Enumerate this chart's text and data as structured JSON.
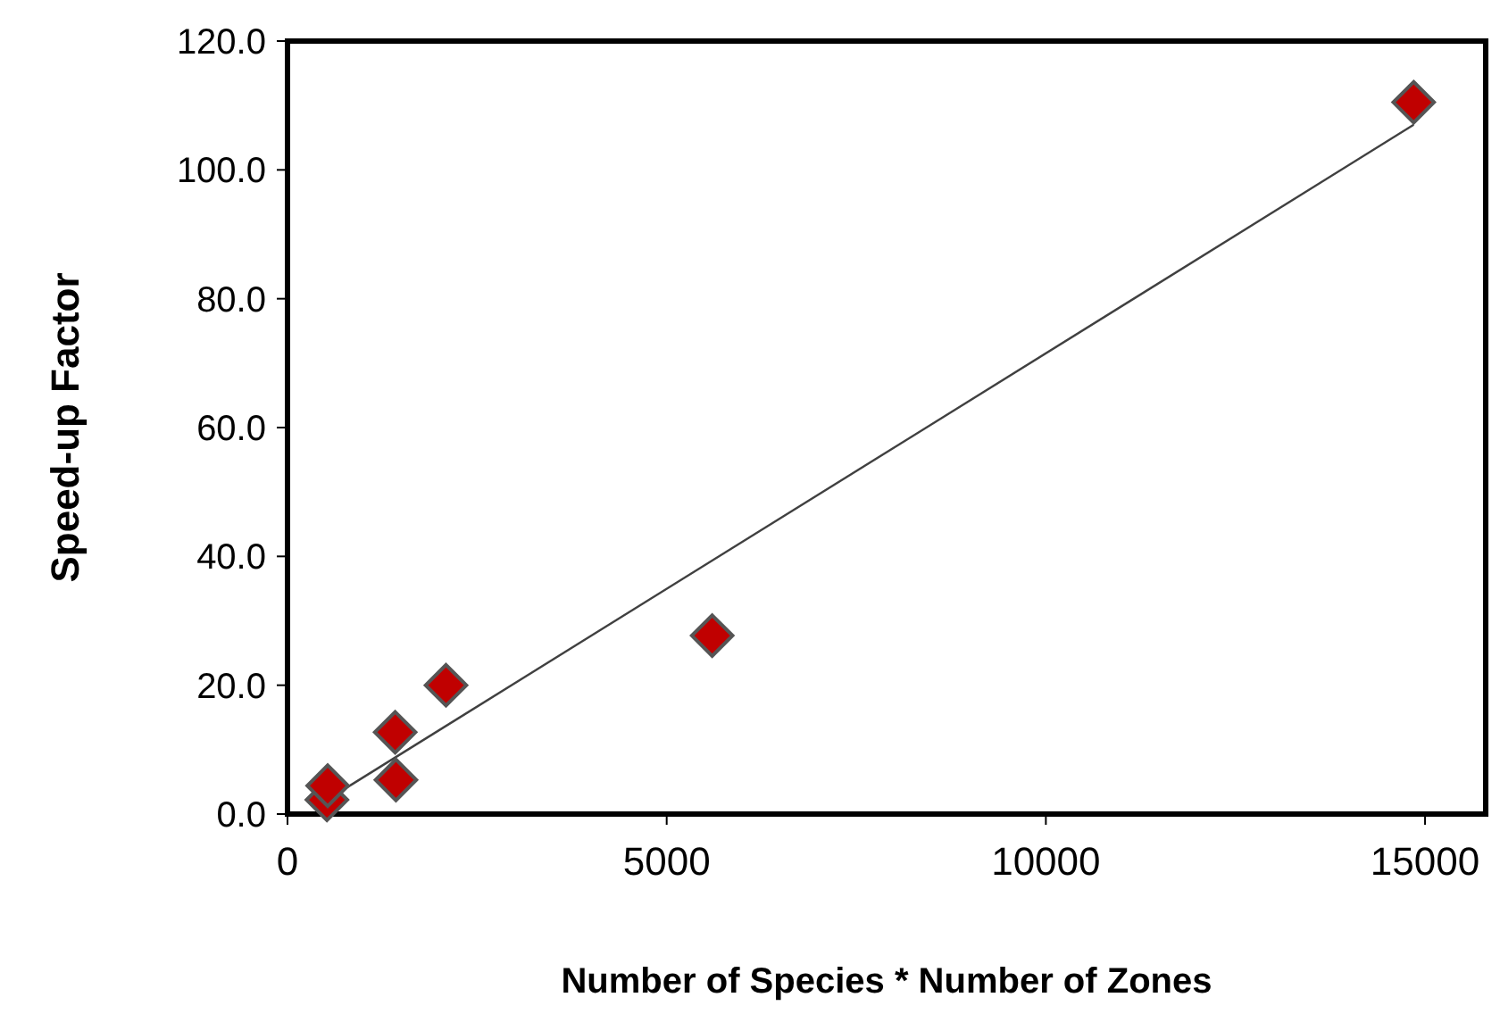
{
  "chart_data": {
    "type": "scatter",
    "xlabel": "Number of Species * Number of Zones",
    "ylabel": "Speed-up Factor",
    "xlim": [
      0,
      15800
    ],
    "xticks": [
      0,
      5000,
      10000,
      15000
    ],
    "ylim": [
      0,
      120
    ],
    "yticks": [
      {
        "value": 0,
        "label": "0.0"
      },
      {
        "value": 20,
        "label": "20.0"
      },
      {
        "value": 40,
        "label": "40.0"
      },
      {
        "value": 60,
        "label": "60.0"
      },
      {
        "value": 80,
        "label": "80.0"
      },
      {
        "value": 100,
        "label": "100.0"
      },
      {
        "value": 120,
        "label": "120.0"
      }
    ],
    "grid": false,
    "series": [
      {
        "marker": "diamond",
        "color": "#c00000",
        "x": [
          520,
          530,
          1420,
          1430,
          2090,
          5600,
          14850
        ],
        "values": [
          2.2,
          4.4,
          12.7,
          5.3,
          20,
          27.7,
          110.5
        ]
      },
      {
        "type": "line",
        "color": "#404040",
        "x": [
          520,
          14850
        ],
        "values": [
          2.2,
          107
        ]
      }
    ]
  }
}
